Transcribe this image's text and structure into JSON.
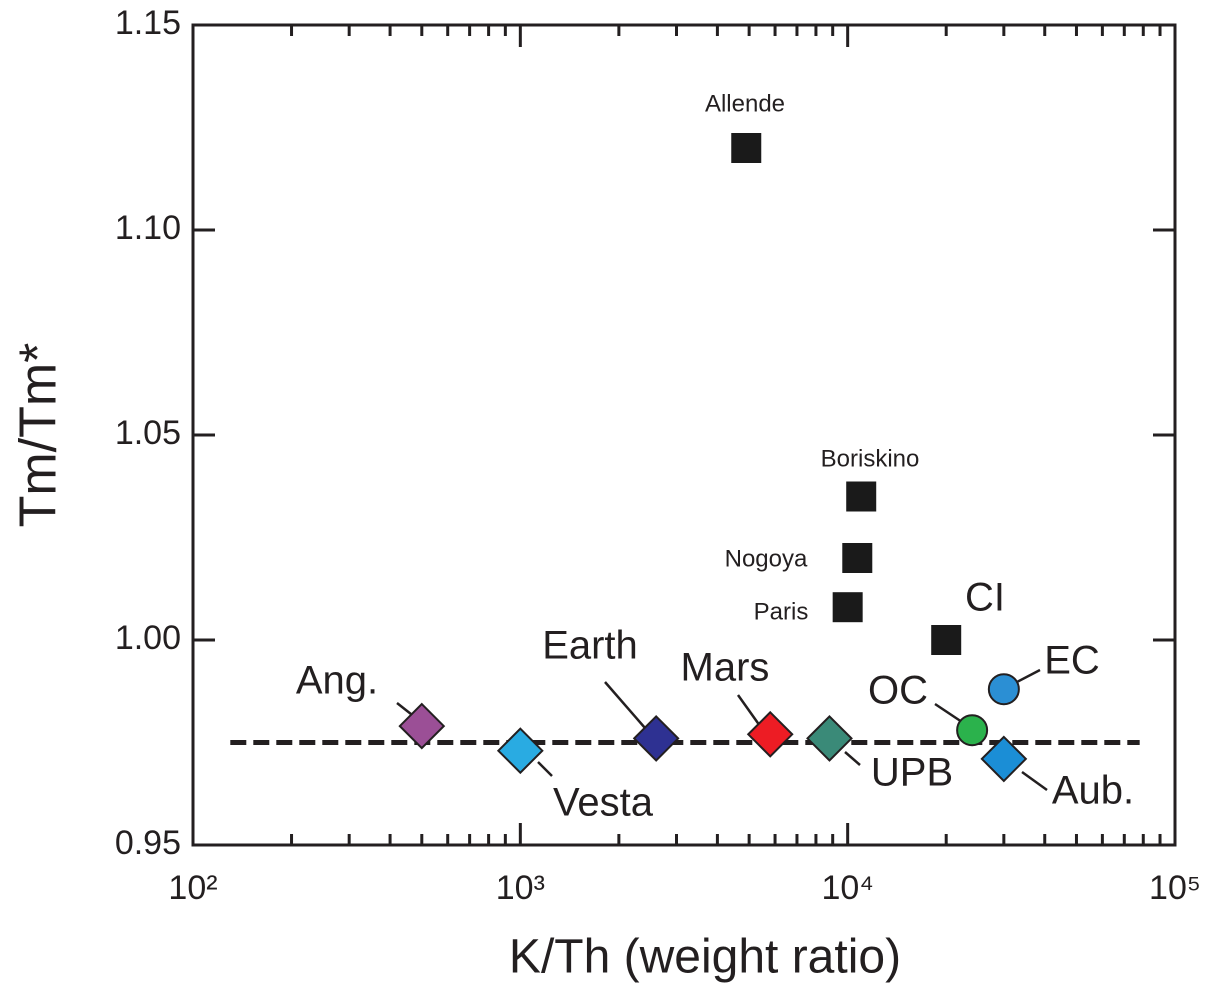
{
  "chart_data": {
    "type": "scatter",
    "xlabel": "K/Th (weight ratio)",
    "ylabel": "Tm/Tm*",
    "xscale": "log",
    "xlim": [
      100,
      100000
    ],
    "ylim": [
      0.95,
      1.15
    ],
    "xticks": [
      {
        "value": 100,
        "label": "10²"
      },
      {
        "value": 1000,
        "label": "10³"
      },
      {
        "value": 10000,
        "label": "10⁴"
      },
      {
        "value": 100000,
        "label": "10⁵"
      }
    ],
    "xminorticks": [
      200,
      300,
      400,
      500,
      600,
      700,
      800,
      900,
      2000,
      3000,
      4000,
      5000,
      6000,
      7000,
      8000,
      9000,
      20000,
      30000,
      40000,
      50000,
      60000,
      70000,
      80000,
      90000
    ],
    "yticks": [
      0.95,
      {
        "value": 1,
        "label": "1.00"
      },
      1.05,
      {
        "value": 1.1,
        "label": "1.10"
      },
      1.15
    ],
    "reference_line": {
      "x": [
        130,
        78000
      ],
      "y": 0.975,
      "color": "#231f20"
    },
    "points": [
      {
        "label": "Allende",
        "x": 4900,
        "y": 1.12,
        "marker": "square",
        "color": "#1a1a1a"
      },
      {
        "label": "Boriskino",
        "x": 11000,
        "y": 1.035,
        "marker": "square",
        "color": "#1a1a1a"
      },
      {
        "label": "Nogoya",
        "x": 10700,
        "y": 1.02,
        "marker": "square",
        "color": "#1a1a1a"
      },
      {
        "label": "Paris",
        "x": 10000,
        "y": 1.008,
        "marker": "square",
        "color": "#1a1a1a"
      },
      {
        "label": "CI",
        "x": 20000,
        "y": 1.0,
        "marker": "square",
        "color": "#1a1a1a"
      },
      {
        "label": "EC",
        "x": 30000,
        "y": 0.988,
        "marker": "circle",
        "color": "#2b8fd4"
      },
      {
        "label": "OC",
        "x": 24000,
        "y": 0.978,
        "marker": "circle",
        "color": "#2bb24c"
      },
      {
        "label": "Aub.",
        "x": 30000,
        "y": 0.971,
        "marker": "diamond",
        "color": "#1b8ed6"
      },
      {
        "label": "Ang.",
        "x": 500,
        "y": 0.979,
        "marker": "diamond",
        "color": "#9b4f96"
      },
      {
        "label": "Vesta",
        "x": 1000,
        "y": 0.973,
        "marker": "diamond",
        "color": "#29abe2"
      },
      {
        "label": "Earth",
        "x": 2600,
        "y": 0.976,
        "marker": "diamond",
        "color": "#2e3192"
      },
      {
        "label": "Mars",
        "x": 5800,
        "y": 0.977,
        "marker": "diamond",
        "color": "#ed1c24"
      },
      {
        "label": "UPB",
        "x": 8800,
        "y": 0.976,
        "marker": "diamond",
        "color": "#3a8a78"
      }
    ]
  }
}
